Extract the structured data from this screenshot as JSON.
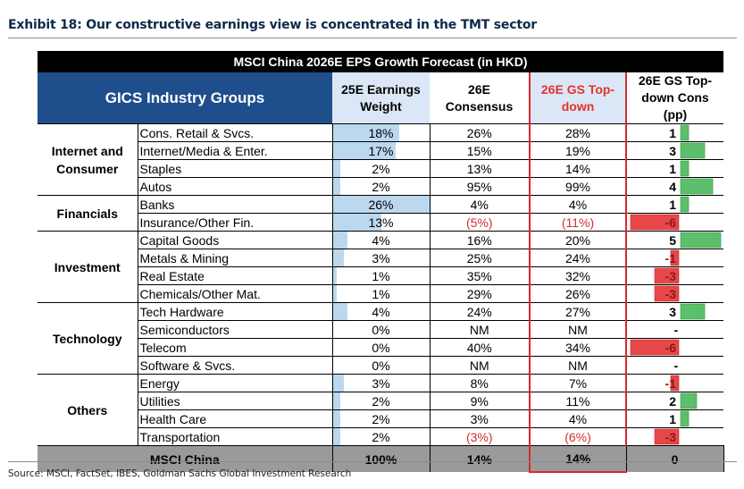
{
  "exhibit_title": "Exhibit 18: Our constructive earnings view is concentrated in the TMT sector",
  "source": "Source: MSCI, FactSet, IBES, Goldman Sachs Global Investment Research",
  "colors": {
    "title_bg": "#000000",
    "header_bg": "#1f4e8c",
    "header_light": "#dbe7f6",
    "gs_red": "#e5332a",
    "weight_bar": "#bcd8ef",
    "pos_bar": "#5cbf6b",
    "neg_bar": "#e8474a",
    "footer_bg": "#9a9a9a"
  },
  "chart_data": {
    "type": "table",
    "title": "MSCI China 2026E EPS Growth Forecast (in HKD)",
    "columns": {
      "group": "GICS Industry Groups",
      "weight": "25E Earnings Weight",
      "consensus": "26E Consensus",
      "gs": "26E GS Top-down",
      "pp": "26E GS Top-down Cons (pp)"
    },
    "groups": [
      {
        "name": "Internet and Consumer",
        "rows": [
          {
            "industry": "Cons. Retail & Svcs.",
            "weight": "18%",
            "weight_value": 18,
            "consensus": "26%",
            "gs": "28%",
            "pp": "1",
            "pp_value": 1
          },
          {
            "industry": "Internet/Media & Enter.",
            "weight": "17%",
            "weight_value": 17,
            "consensus": "15%",
            "gs": "19%",
            "pp": "3",
            "pp_value": 3
          },
          {
            "industry": "Staples",
            "weight": "2%",
            "weight_value": 2,
            "consensus": "13%",
            "gs": "14%",
            "pp": "1",
            "pp_value": 1
          },
          {
            "industry": "Autos",
            "weight": "2%",
            "weight_value": 2,
            "consensus": "95%",
            "gs": "99%",
            "pp": "4",
            "pp_value": 4
          }
        ]
      },
      {
        "name": "Financials",
        "rows": [
          {
            "industry": "Banks",
            "weight": "26%",
            "weight_value": 26,
            "consensus": "4%",
            "gs": "4%",
            "pp": "1",
            "pp_value": 1
          },
          {
            "industry": "Insurance/Other Fin.",
            "weight": "13%",
            "weight_value": 13,
            "consensus": "(5%)",
            "gs": "(11%)",
            "pp": "-6",
            "pp_value": -6
          }
        ]
      },
      {
        "name": "Investment",
        "rows": [
          {
            "industry": "Capital Goods",
            "weight": "4%",
            "weight_value": 4,
            "consensus": "16%",
            "gs": "20%",
            "pp": "5",
            "pp_value": 5
          },
          {
            "industry": "Metals & Mining",
            "weight": "3%",
            "weight_value": 3,
            "consensus": "25%",
            "gs": "24%",
            "pp": "-1",
            "pp_value": -1
          },
          {
            "industry": "Real Estate",
            "weight": "1%",
            "weight_value": 1,
            "consensus": "35%",
            "gs": "32%",
            "pp": "-3",
            "pp_value": -3
          },
          {
            "industry": "Chemicals/Other Mat.",
            "weight": "1%",
            "weight_value": 1,
            "consensus": "29%",
            "gs": "26%",
            "pp": "-3",
            "pp_value": -3
          }
        ]
      },
      {
        "name": "Technology",
        "rows": [
          {
            "industry": "Tech Hardware",
            "weight": "4%",
            "weight_value": 4,
            "consensus": "24%",
            "gs": "27%",
            "pp": "3",
            "pp_value": 3
          },
          {
            "industry": "Semiconductors",
            "weight": "0%",
            "weight_value": 0,
            "consensus": "NM",
            "gs": "NM",
            "pp": "-",
            "pp_value": 0
          },
          {
            "industry": "Telecom",
            "weight": "0%",
            "weight_value": 0,
            "consensus": "40%",
            "gs": "34%",
            "pp": "-6",
            "pp_value": -6
          },
          {
            "industry": "Software & Svcs.",
            "weight": "0%",
            "weight_value": 0,
            "consensus": "NM",
            "gs": "NM",
            "pp": "-",
            "pp_value": 0
          }
        ]
      },
      {
        "name": "Others",
        "rows": [
          {
            "industry": "Energy",
            "weight": "3%",
            "weight_value": 3,
            "consensus": "8%",
            "gs": "7%",
            "pp": "-1",
            "pp_value": -1
          },
          {
            "industry": "Utilities",
            "weight": "2%",
            "weight_value": 2,
            "consensus": "9%",
            "gs": "11%",
            "pp": "2",
            "pp_value": 2
          },
          {
            "industry": "Health Care",
            "weight": "2%",
            "weight_value": 2,
            "consensus": "3%",
            "gs": "4%",
            "pp": "1",
            "pp_value": 1
          },
          {
            "industry": "Transportation",
            "weight": "2%",
            "weight_value": 2,
            "consensus": "(3%)",
            "gs": "(6%)",
            "pp": "-3",
            "pp_value": -3
          }
        ]
      }
    ],
    "total": {
      "label": "MSCI China",
      "weight": "100%",
      "consensus": "14%",
      "gs": "14%",
      "pp": "0"
    },
    "weight_max": 26,
    "pp_range": [
      -6,
      5
    ]
  }
}
